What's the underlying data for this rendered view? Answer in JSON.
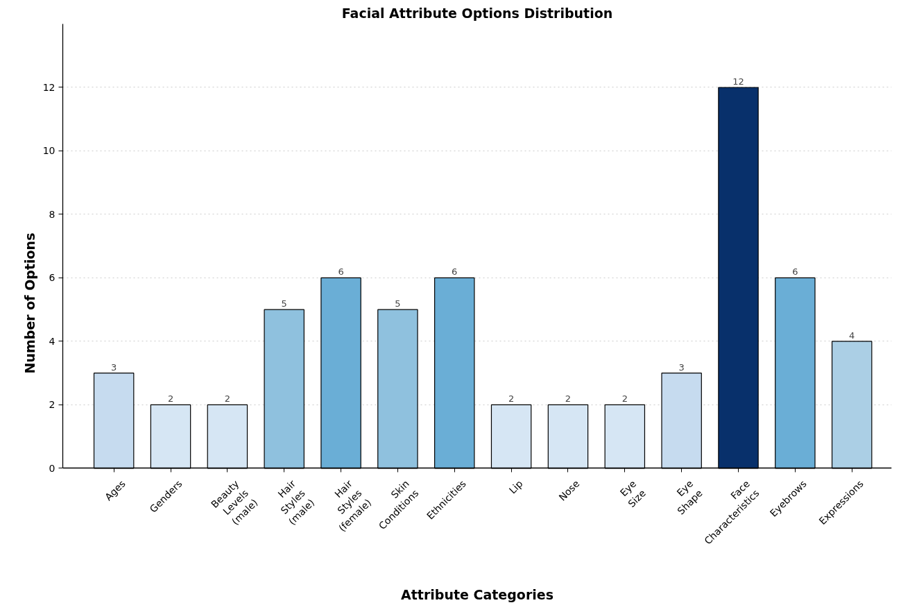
{
  "chart_data": {
    "type": "bar",
    "title": "Facial Attribute Options Distribution",
    "xlabel": "Attribute Categories",
    "ylabel": "Number of Options",
    "categories": [
      "Ages",
      "Genders",
      "Beauty Levels (male)",
      "Hair Styles (male)",
      "Hair Styles (female)",
      "Skin Conditions",
      "Ethnicities",
      "Lip",
      "Nose",
      "Eye Size",
      "Eye Shape",
      "Face Characteristics",
      "Eyebrows",
      "Expressions"
    ],
    "values": [
      3,
      2,
      2,
      5,
      6,
      5,
      6,
      2,
      2,
      2,
      3,
      12,
      6,
      4
    ],
    "colors": [
      "#c6dbef",
      "#d6e6f4",
      "#d6e6f4",
      "#8fc1de",
      "#6aaed6",
      "#8fc1de",
      "#6aaed6",
      "#d6e6f4",
      "#d6e6f4",
      "#d6e6f4",
      "#c6dbef",
      "#08306b",
      "#6aaed6",
      "#abcfe5"
    ],
    "ylim": [
      0,
      14
    ],
    "yticks": [
      0,
      2,
      4,
      6,
      8,
      10,
      12
    ],
    "grid": "y",
    "data_labels": true
  }
}
